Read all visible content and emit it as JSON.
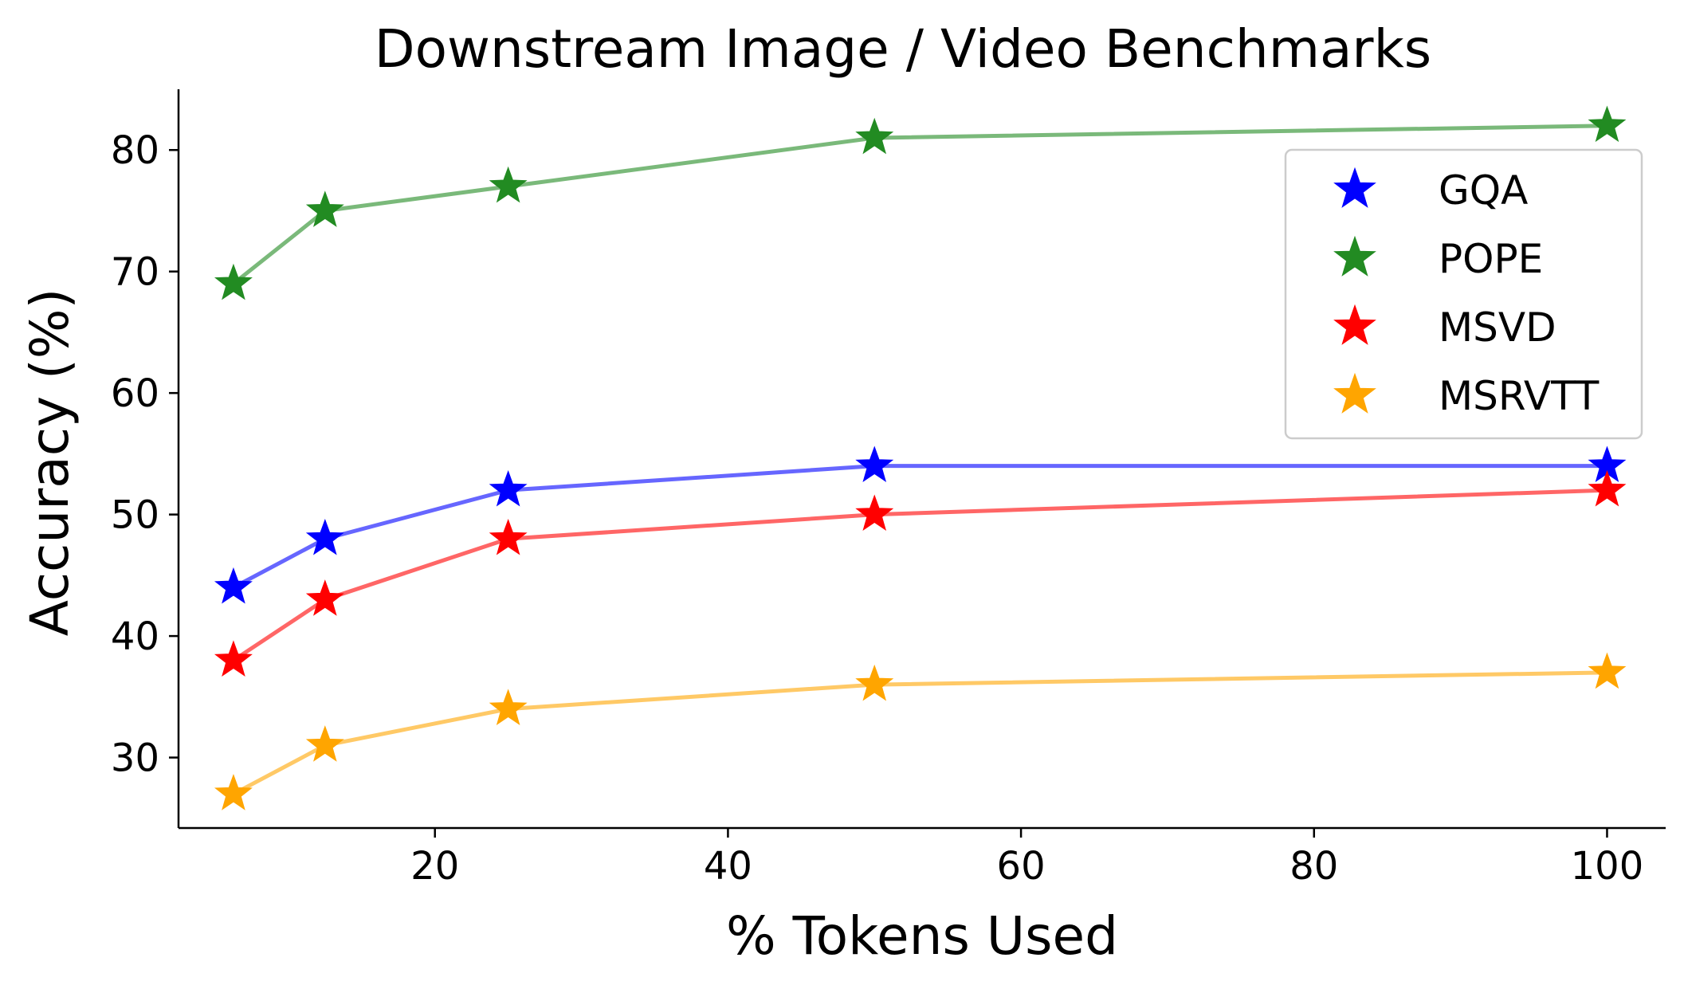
{
  "chart_data": {
    "type": "line",
    "title": "Downstream Image / Video Benchmarks",
    "xlabel": "% Tokens Used",
    "ylabel": "Accuracy (%)",
    "x": [
      6.25,
      12.5,
      25,
      50,
      100
    ],
    "xlim": [
      2.5,
      104.0
    ],
    "ylim": [
      24.2,
      85.0
    ],
    "xticks": [
      20,
      40,
      60,
      80,
      100
    ],
    "yticks": [
      30,
      40,
      50,
      60,
      70,
      80
    ],
    "grid": false,
    "legend_position": "upper-right",
    "marker": "star",
    "series": [
      {
        "name": "GQA",
        "color": "#0000ff",
        "values": [
          44,
          48,
          52,
          54,
          54
        ]
      },
      {
        "name": "POPE",
        "color": "#228b22",
        "values": [
          69,
          75,
          77,
          81,
          82
        ]
      },
      {
        "name": "MSVD",
        "color": "#ff0000",
        "values": [
          38,
          43,
          48,
          50,
          52
        ]
      },
      {
        "name": "MSRVTT",
        "color": "#ffa500",
        "values": [
          27,
          31,
          34,
          36,
          37
        ]
      }
    ]
  }
}
